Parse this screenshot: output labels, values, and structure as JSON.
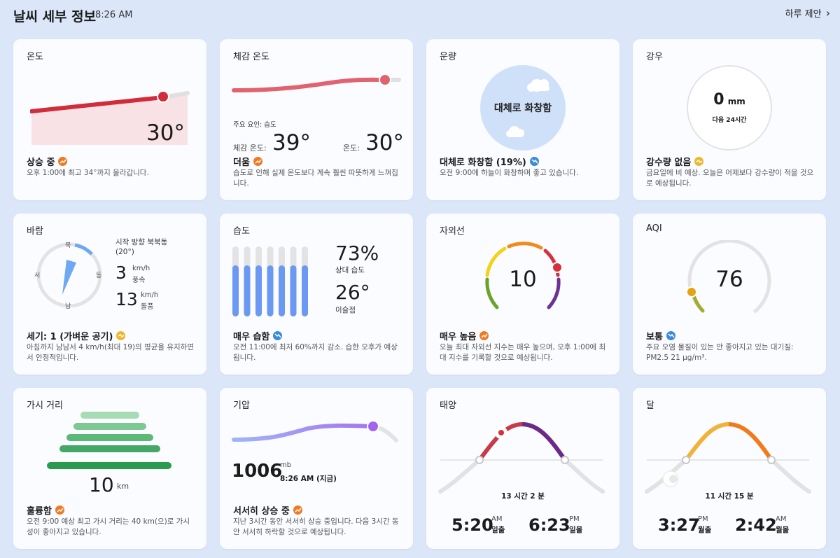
{
  "header": {
    "title": "날씨 세부 정보",
    "time": "8:26 AM",
    "suggest": "하루 제안"
  },
  "temp": {
    "title": "온도",
    "value": "30°",
    "status": "상승 중",
    "desc": "오후 1:00에 최고 34°까지 올라갑니다."
  },
  "feels": {
    "title": "체감 온도",
    "factor": "주요 요인: 습도",
    "feels_label": "체감 온도:",
    "feels_value": "39°",
    "temp_label": "온도:",
    "temp_value": "30°",
    "status": "더움",
    "desc": "습도로 인해 실제 온도보다 계속 훨씬 따뜻하게 느껴집니다."
  },
  "cloud": {
    "title": "운량",
    "center": "대체로 화창함",
    "status": "대체로 화창함 (19%)",
    "desc": "오전 9:00에 하늘이 화창하며 좋고 있습니다."
  },
  "rain": {
    "title": "강우",
    "amount": "0",
    "unit": "mm",
    "period": "다음 24시간",
    "status": "강수량 없음",
    "desc": "금요일에 비 예상. 오늘은 어제보다 강수량이 적을 것으로 예상됩니다."
  },
  "wind": {
    "title": "바람",
    "n": "북",
    "e": "동",
    "s": "남",
    "w": "서",
    "dir": "시작 방향 북북동",
    "deg": "(20°)",
    "speed": "3",
    "speed_unit": "km/h",
    "speed_label": "풍속",
    "gust": "13",
    "gust_unit": "km/h",
    "gust_label": "돌풍",
    "status": "세기: 1 (가벼운 공기)",
    "desc": "아침까지 남남서 4 km/h(최대 19)의 평균을 유지하면서 안정적입니다."
  },
  "humidity": {
    "title": "습도",
    "rh": "73%",
    "rh_label": "상대 습도",
    "dew": "26°",
    "dew_label": "이슬점",
    "status": "매우 습함",
    "desc": "오전 11:00에 최저 60%까지 감소. 습한 오후가 예상됩니다.",
    "fill": 0.73
  },
  "uv": {
    "title": "자외선",
    "value": "10",
    "status": "매우 높음",
    "desc": "오늘 최대 자외선 지수는 매우 높으며, 오후 1:00에 최대 지수를 기록할 것으로 예상됩니다."
  },
  "aqi": {
    "title": "AQI",
    "value": "76",
    "status": "보통",
    "desc": "주요 오염 물질이 있는 안 좋아지고 있는 대기질: PM2.5 21 µg/m³."
  },
  "vis": {
    "title": "가시 거리",
    "value": "10",
    "unit": "km",
    "status": "훌륭함",
    "desc": "오전 9:00 예상 최고 가시 거리는 40 km(으)로 가시성이 좋아지고 있습니다."
  },
  "pressure": {
    "title": "기압",
    "value": "1006",
    "unit": "mb",
    "time": "8:26 AM (지금)",
    "status": "서서히 상승 중",
    "desc": "지난 3시간 동안 서서히 상승 중입니다. 다음 3시간 동안 서서히 하락할 것으로 예상됩니다."
  },
  "sun": {
    "title": "태양",
    "duration": "13 시간 2 분",
    "rise_time": "5:20",
    "rise_ampm": "AM",
    "rise_label": "일출",
    "set_time": "6:23",
    "set_ampm": "PM",
    "set_label": "일몰"
  },
  "moon": {
    "title": "달",
    "duration": "11 시간 15 분",
    "rise_time": "3:27",
    "rise_ampm": "PM",
    "rise_label": "월출",
    "set_time": "2:42",
    "set_ampm": "AM",
    "set_label": "월몰"
  },
  "colors": {
    "accent_red": "#d22b3a",
    "orange_badge": "#f07a22",
    "blue_badge": "#3b8bdb",
    "yellow_badge": "#eeb82c"
  }
}
